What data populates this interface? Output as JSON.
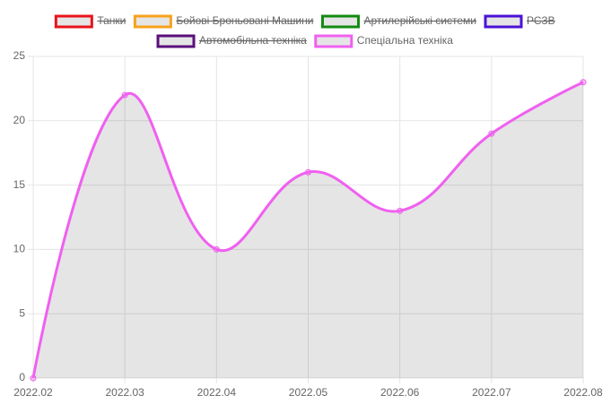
{
  "chart_data": {
    "type": "line",
    "categories": [
      "2022.02",
      "2022.03",
      "2022.04",
      "2022.05",
      "2022.06",
      "2022.07",
      "2022.08"
    ],
    "series": [
      {
        "name": "Танки",
        "color": "#e8141a",
        "hidden": true
      },
      {
        "name": "Бойові Броньовані Машини",
        "color": "#f7a21b",
        "hidden": true
      },
      {
        "name": "Артилерійські системи",
        "color": "#128a12",
        "hidden": true
      },
      {
        "name": "РСЗВ",
        "color": "#4b12d6",
        "hidden": true
      },
      {
        "name": "Автомобільна техніка",
        "color": "#5a0f7a",
        "hidden": true
      },
      {
        "name": "Спеціальна техніка",
        "color": "#f060f0",
        "hidden": false,
        "values": [
          0,
          22,
          10,
          16,
          13,
          19,
          23
        ]
      }
    ],
    "ylim": [
      0,
      25
    ],
    "yticks": [
      0,
      5,
      10,
      15,
      20,
      25
    ],
    "grid": true
  }
}
